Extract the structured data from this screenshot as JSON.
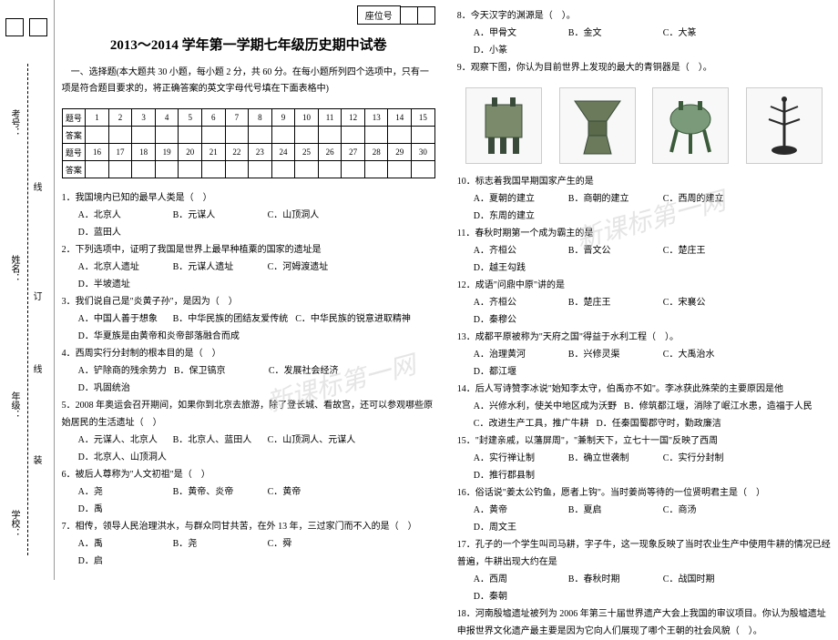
{
  "margin": {
    "labels": [
      "考号：",
      "姓名：",
      "年级：",
      "学校："
    ],
    "fold_marks": [
      "线",
      "订",
      "线",
      "装"
    ]
  },
  "seat_label": "座位号",
  "title": "2013～2014 学年第一学期七年级历史期中试卷",
  "section1_intro": "一、选择题(本大题共 30 小题，每小题 2 分，共 60 分。在每小题所列四个选项中，只有一项是符合题目要求的，将正确答案的英文字母代号填在下面表格中)",
  "answer_table": {
    "row1_label": "题号",
    "row2_label": "答案",
    "nums1": [
      "1",
      "2",
      "3",
      "4",
      "5",
      "6",
      "7",
      "8",
      "9",
      "10",
      "11",
      "12",
      "13",
      "14",
      "15"
    ],
    "row3_label": "题号",
    "row4_label": "答案",
    "nums2": [
      "16",
      "17",
      "18",
      "19",
      "20",
      "21",
      "22",
      "23",
      "24",
      "25",
      "26",
      "27",
      "28",
      "29",
      "30"
    ]
  },
  "left_questions": [
    {
      "n": "1",
      "stem": "我国境内已知的最早人类是（　）",
      "opts": [
        "A．北京人",
        "B．元谋人",
        "C．山顶洞人",
        "D．蓝田人"
      ]
    },
    {
      "n": "2",
      "stem": "下列选项中，证明了我国是世界上最早种植粟的国家的遗址是",
      "opts": [
        "A．北京人遗址",
        "B．元谋人遗址",
        "C．河姆渡遗址",
        "D．半坡遗址"
      ]
    },
    {
      "n": "3",
      "stem": "我们说自己是\"炎黄子孙\"，是因为（　）",
      "opts": [
        "A．中国人善于想象",
        "B．中华民族的团结友爱传统",
        "C．中华民族的锐意进取精神",
        "D．华夏族是由黄帝和炎帝部落融合而成"
      ]
    },
    {
      "n": "4",
      "stem": "西周实行分封制的根本目的是（　）",
      "opts": [
        "A．铲除商的残余势力",
        "B．保卫镐京",
        "C．发展社会经济",
        "D．巩固统治"
      ]
    },
    {
      "n": "5",
      "stem": "2008 年奥运会召开期间，如果你到北京去旅游，除了登长城、看故宫，还可以参观哪些原始居民的生活遗址（　）",
      "opts": [
        "A．元谋人、北京人",
        "B．北京人、蓝田人",
        "C．山顶洞人、元谋人",
        "D．北京人、山顶洞人"
      ]
    },
    {
      "n": "6",
      "stem": "被后人尊称为\"人文初祖\"是（　）",
      "opts": [
        "A．尧",
        "B．黄帝、炎帝",
        "C．黄帝",
        "D．禹"
      ]
    },
    {
      "n": "7",
      "stem": "相传，领导人民治理洪水，与群众同甘共苦，在外 13 年，三过家门而不入的是（　）",
      "opts": [
        "A．禹",
        "B．尧",
        "C．舜",
        "D．启"
      ]
    }
  ],
  "right_questions_top": [
    {
      "n": "8",
      "stem": "今天汉字的渊源是（　）。",
      "opts": [
        "A．甲骨文",
        "B．金文",
        "C．大篆",
        "D．小篆"
      ]
    },
    {
      "n": "9",
      "stem": "观察下图，你认为目前世界上发现的最大的青铜器是（　）。",
      "opts": []
    }
  ],
  "right_questions": [
    {
      "n": "10",
      "stem": "标志着我国早期国家产生的是",
      "opts": [
        "A．夏朝的建立",
        "B．商朝的建立",
        "C．西周的建立",
        "D．东周的建立"
      ]
    },
    {
      "n": "11",
      "stem": "春秋时期第一个成为霸主的是",
      "opts": [
        "A．齐桓公",
        "B．晋文公",
        "C．楚庄王",
        "D．越王勾践"
      ]
    },
    {
      "n": "12",
      "stem": "成语\"问鼎中原\"讲的是",
      "opts": [
        "A．齐桓公",
        "B．楚庄王",
        "C．宋襄公",
        "D．秦穆公"
      ]
    },
    {
      "n": "13",
      "stem": "成都平原被称为\"天府之国\"得益于水利工程（　）。",
      "opts": [
        "A．治理黄河",
        "B．兴修灵渠",
        "C．大禹治水",
        "D．都江堰"
      ]
    },
    {
      "n": "14",
      "stem": "后人写诗赞李冰说\"始知李太守，伯禹亦不如\"。李冰获此殊荣的主要原因是他",
      "opts": [
        "A．兴修水利，使关中地区成为沃野",
        "B．修筑都江堰，消除了岷江水患，造福于人民",
        "C．改进生产工具，推广牛耕",
        "D．任秦国蜀郡守时，勤政廉洁"
      ]
    },
    {
      "n": "15",
      "stem": "\"封建亲戚，以藩屏周\"，\"兼制天下，立七十一国\"反映了西周",
      "opts": [
        "A．实行禅让制",
        "B．确立世袭制",
        "C．实行分封制",
        "D．推行郡县制"
      ]
    },
    {
      "n": "16",
      "stem": "俗话说\"姜太公钓鱼，愿者上钩\"。当时姜尚等待的一位贤明君主是（　）",
      "opts": [
        "A．黄帝",
        "B．夏启",
        "C．商汤",
        "D．周文王"
      ]
    },
    {
      "n": "17",
      "stem": "孔子的一个学生叫司马耕，字子牛，这一现象反映了当时农业生产中使用牛耕的情况已经普遍，牛耕出现大约在是",
      "opts": [
        "A．西周",
        "B．春秋时期",
        "C．战国时期",
        "D．秦朝"
      ]
    },
    {
      "n": "18",
      "stem": "河南殷墟遗址被列为 2006 年第三十届世界遗产大会上我国的审议项目。你认为殷墟遗址申报世界文化遗产最主要是因为它向人们展现了哪个王朝的社会风貌（　）。",
      "opts": []
    }
  ],
  "watermark_text": "新课标第一网",
  "colors": {
    "text": "#000000",
    "border": "#000000",
    "watermark": "#cccccc",
    "artifact_border": "#cccccc",
    "background": "#ffffff"
  }
}
